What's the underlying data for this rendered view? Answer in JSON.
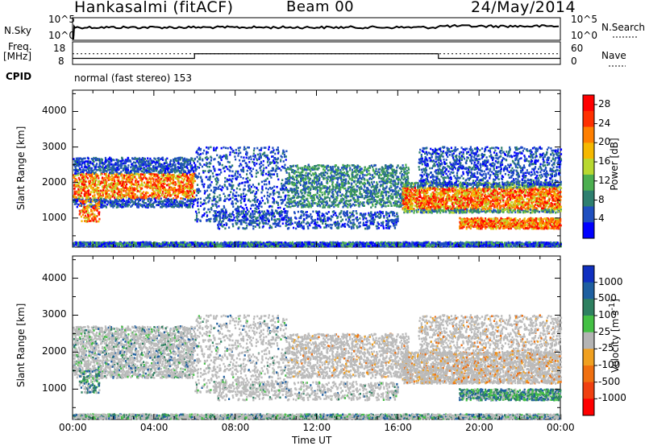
{
  "header": {
    "station": "Hankasalmi (fitACF)",
    "beam": "Beam 00",
    "date": "24/May/2014"
  },
  "top_panel": {
    "left_label": "N.Sky",
    "right_label": "N.Search",
    "left_ticks": [
      "10^5",
      "10^0"
    ],
    "right_ticks": [
      "10^5",
      "10^0"
    ]
  },
  "freq_panel": {
    "left_label_1": "Freq.",
    "left_label_2": "[MHz]",
    "left_ticks": [
      "18",
      "8"
    ],
    "right_ticks": [
      "60",
      "0"
    ],
    "right_label": "Nave",
    "cpid_label": "CPID",
    "cpid_text": "normal (fast stereo) 153"
  },
  "colors": {
    "power_scale": [
      "#0000ff",
      "#1f4fbf",
      "#2e7f6f",
      "#4caf50",
      "#b8d830",
      "#f5b800",
      "#ff7f00",
      "#ff3000",
      "#ff0000"
    ],
    "velocity_scale": [
      "#1030c0",
      "#1e5fa0",
      "#2e8060",
      "#44c044",
      "#b4b4b4",
      "#f0a020",
      "#f07010",
      "#f04010",
      "#ff0000"
    ],
    "ground_scatter": "#bbbbbb"
  },
  "chart_data": [
    {
      "type": "heatmap",
      "panel": "power",
      "ylabel": "Slant Range [km]",
      "xlabel": "Time UT",
      "x_ticks": [
        "00:00",
        "04:00",
        "08:00",
        "12:00",
        "16:00",
        "20:00",
        "00:00"
      ],
      "y_ticks": [
        "1000",
        "2000",
        "3000",
        "4000"
      ],
      "ylim": [
        180,
        4600
      ],
      "colorbar": {
        "label": "Power [dB]",
        "ticks": [
          "4",
          "8",
          "12",
          "16",
          "20",
          "24",
          "28"
        ],
        "range": [
          0,
          30
        ]
      },
      "features": [
        {
          "time_start_h": 0.0,
          "time_end_h": 6.0,
          "range_start_km": 1400,
          "range_end_km": 2300,
          "power_db": 20
        },
        {
          "time_start_h": 16.2,
          "time_end_h": 24.0,
          "range_start_km": 1200,
          "range_end_km": 2000,
          "power_db": 26
        },
        {
          "time_start_h": 19.0,
          "time_end_h": 24.0,
          "range_start_km": 700,
          "range_end_km": 1000,
          "power_db": 24
        }
      ]
    },
    {
      "type": "heatmap",
      "panel": "velocity",
      "ylabel": "Slant Range [km]",
      "xlabel": "Time UT",
      "x_ticks": [
        "00:00",
        "04:00",
        "08:00",
        "12:00",
        "16:00",
        "20:00",
        "00:00"
      ],
      "y_ticks": [
        "1000",
        "2000",
        "3000",
        "4000"
      ],
      "ylim": [
        180,
        4600
      ],
      "colorbar": {
        "label": "Velocity [m s^-1]",
        "ticks": [
          "1000",
          "500",
          "100",
          "25",
          "-25",
          "-100",
          "-500",
          "-1000"
        ],
        "range": [
          -1000,
          1000
        ]
      }
    }
  ]
}
